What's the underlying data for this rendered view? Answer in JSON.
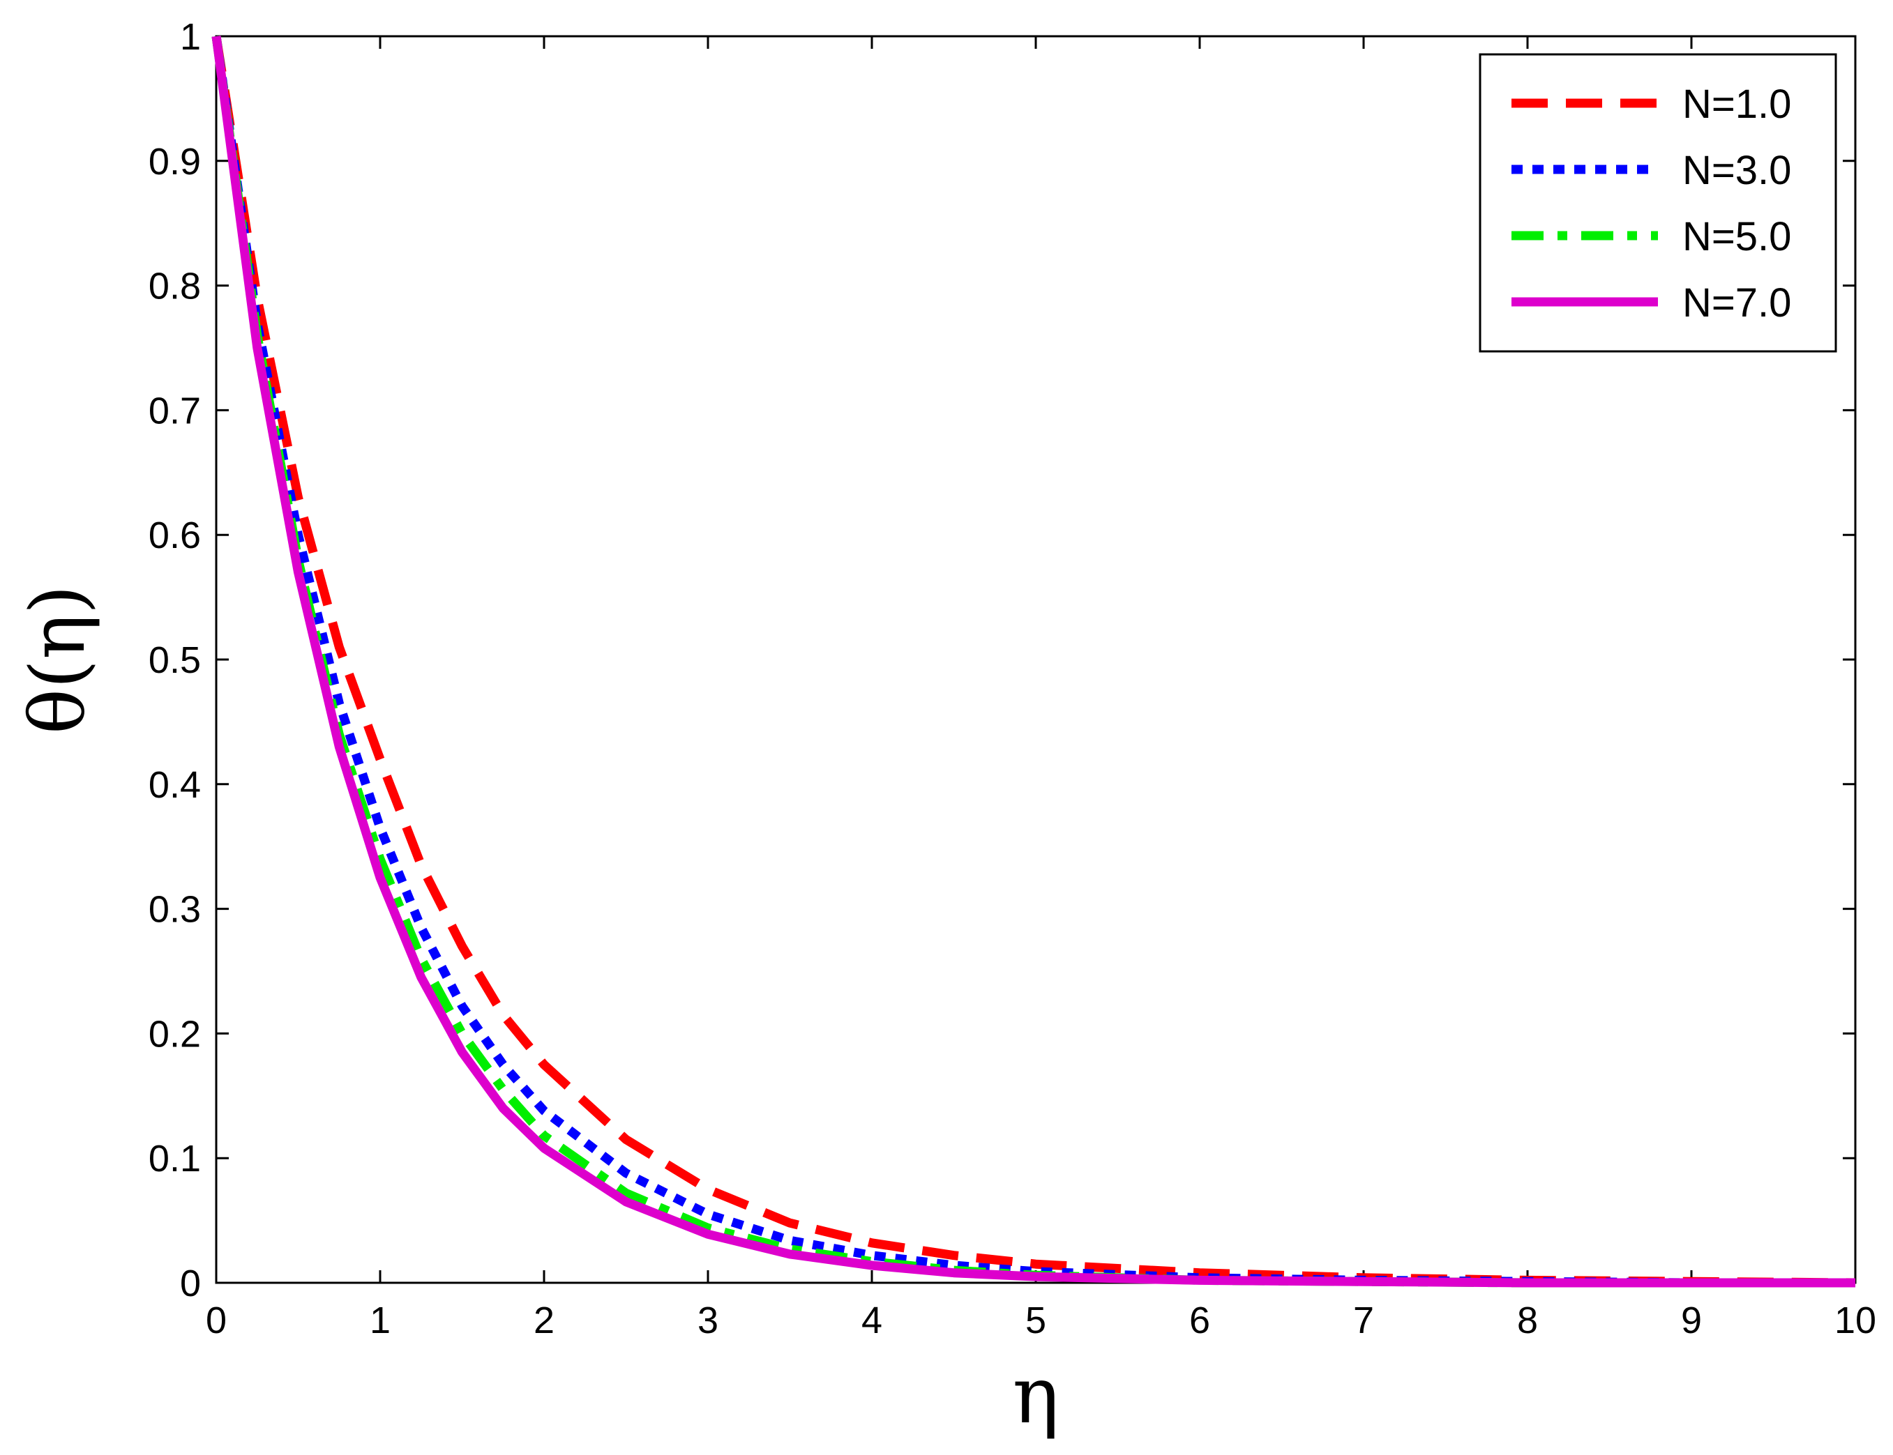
{
  "chart_data": {
    "type": "line",
    "xlabel": "η",
    "ylabel": "θ(η)",
    "xlim": [
      0,
      10
    ],
    "ylim": [
      0,
      1
    ],
    "xticks": [
      "0",
      "1",
      "2",
      "3",
      "4",
      "5",
      "6",
      "7",
      "8",
      "9",
      "10"
    ],
    "yticks": [
      "0",
      "0.1",
      "0.2",
      "0.3",
      "0.4",
      "0.5",
      "0.6",
      "0.7",
      "0.8",
      "0.9",
      "1"
    ],
    "grid": false,
    "legend_position": "top-right",
    "x": [
      0,
      0.25,
      0.5,
      0.75,
      1,
      1.25,
      1.5,
      1.75,
      2,
      2.5,
      3,
      3.5,
      4,
      4.5,
      5,
      6,
      7,
      8,
      9,
      10
    ],
    "series": [
      {
        "name": "N=1.0",
        "color": "#ff0000",
        "style": "dashed",
        "values": [
          1.0,
          0.79,
          0.63,
          0.51,
          0.42,
          0.335,
          0.27,
          0.215,
          0.175,
          0.115,
          0.075,
          0.048,
          0.032,
          0.022,
          0.015,
          0.008,
          0.004,
          0.002,
          0.001,
          0.0
        ]
      },
      {
        "name": "N=3.0",
        "color": "#0000ff",
        "style": "dotted",
        "values": [
          1.0,
          0.77,
          0.6,
          0.465,
          0.365,
          0.285,
          0.222,
          0.175,
          0.138,
          0.088,
          0.055,
          0.034,
          0.022,
          0.014,
          0.009,
          0.004,
          0.002,
          0.001,
          0.0,
          0.0
        ]
      },
      {
        "name": "N=5.0",
        "color": "#00ee00",
        "style": "dashdot",
        "values": [
          1.0,
          0.76,
          0.58,
          0.44,
          0.34,
          0.26,
          0.2,
          0.155,
          0.118,
          0.072,
          0.044,
          0.027,
          0.017,
          0.01,
          0.006,
          0.002,
          0.001,
          0.0,
          0.0,
          0.0
        ]
      },
      {
        "name": "N=7.0",
        "color": "#dd00cc",
        "style": "solid",
        "values": [
          1.0,
          0.75,
          0.57,
          0.43,
          0.325,
          0.245,
          0.185,
          0.14,
          0.108,
          0.065,
          0.039,
          0.023,
          0.014,
          0.008,
          0.005,
          0.002,
          0.001,
          0.0,
          0.0,
          0.0
        ]
      }
    ]
  }
}
